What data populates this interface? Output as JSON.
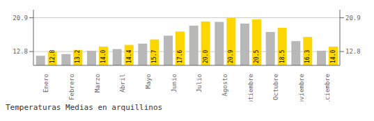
{
  "chart_data": {
    "type": "bar",
    "title": "Temperaturas Medias en arquillinos",
    "categories": [
      "Enero",
      "Febrero",
      "Marzo",
      "Abril",
      "Mayo",
      "Junio",
      "Julio",
      "Agosto",
      "Septiembre",
      "Octubre",
      "Noviembre",
      "Diciembre"
    ],
    "series": [
      {
        "color": "#B8B8B8",
        "values": [
          11.8,
          12.2,
          13.0,
          13.4,
          14.7,
          16.6,
          19.0,
          19.9,
          19.5,
          17.5,
          15.3,
          13.0
        ]
      },
      {
        "color": "#FFD700",
        "values": [
          12.8,
          13.2,
          14.0,
          14.4,
          15.7,
          17.6,
          20.0,
          20.9,
          20.5,
          18.5,
          16.3,
          14.0
        ],
        "data_labels": true,
        "value_labels": [
          "12.8",
          "13.2",
          "14.0",
          "14.4",
          "15.7",
          "17.6",
          "20.0",
          "20.9",
          "20.5",
          "18.5",
          "16.3",
          "14.0"
        ]
      }
    ],
    "ylim": [
      9.5,
      22.8
    ],
    "yticks": [
      12.8,
      20.9
    ],
    "y2lim": [
      9.5,
      22.8
    ],
    "y2ticks": [
      12.8,
      20.9
    ],
    "grid": true
  }
}
